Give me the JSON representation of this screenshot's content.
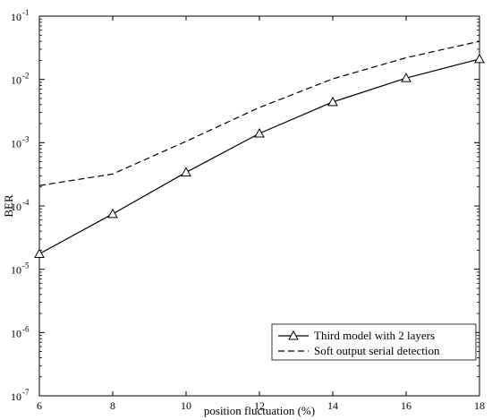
{
  "chart_data": {
    "type": "line",
    "xlabel": "position fluctuation (%)",
    "ylabel": "BER",
    "xlim": [
      6,
      18
    ],
    "ylim_log10": [
      -7,
      -1
    ],
    "yscale": "log",
    "grid": false,
    "legend_placement": "bottom-right",
    "x_ticks": [
      6,
      8,
      10,
      12,
      14,
      16,
      18
    ],
    "x_tick_labels": [
      "6",
      "8",
      "10",
      "12",
      "14",
      "16",
      "18"
    ],
    "y_ticks": [
      {
        "exp": -7,
        "base": "10",
        "power": "-7"
      },
      {
        "exp": -6,
        "base": "10",
        "power": "-6"
      },
      {
        "exp": -5,
        "base": "10",
        "power": "-5"
      },
      {
        "exp": -4,
        "base": "10",
        "power": "-4"
      },
      {
        "exp": -3,
        "base": "10",
        "power": "-3"
      },
      {
        "exp": -2,
        "base": "10",
        "power": "-2"
      },
      {
        "exp": -1,
        "base": "10",
        "power": "-1"
      }
    ],
    "series": [
      {
        "name": "Third model with 2 layers",
        "style": "solid",
        "marker": "triangle",
        "x": [
          6,
          8,
          10,
          12,
          14,
          16,
          18
        ],
        "y": [
          1.75e-05,
          7.5e-05,
          0.00034,
          0.0014,
          0.0044,
          0.0105,
          0.021
        ]
      },
      {
        "name": "Soft output serial detection",
        "style": "dashed",
        "marker": "none",
        "x": [
          6,
          8,
          10,
          12,
          14,
          16,
          18
        ],
        "y": [
          0.00021,
          0.00032,
          0.00105,
          0.0036,
          0.0102,
          0.022,
          0.04
        ]
      }
    ]
  }
}
